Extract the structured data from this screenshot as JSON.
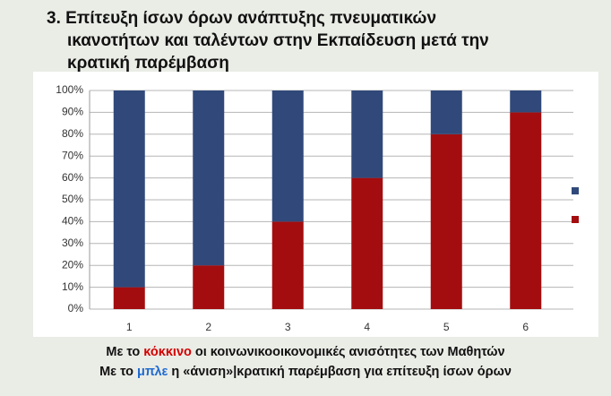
{
  "chart_data": {
    "type": "stacked_bar",
    "title_lines": [
      "3. Επίτευξη ίσων όρων ανάπτυξης πνευματικών",
      "ικανοτήτων και ταλέντων στην Εκπαίδευση μετά την",
      "κρατική παρέμβαση"
    ],
    "categories": [
      "1",
      "2",
      "3",
      "4",
      "5",
      "6"
    ],
    "series": [
      {
        "color": "#a30d0f",
        "values": [
          10,
          20,
          40,
          60,
          80,
          90
        ]
      },
      {
        "color": "#30497a",
        "values": [
          90,
          80,
          60,
          40,
          20,
          10
        ]
      }
    ],
    "ylim": [
      0,
      100
    ],
    "yticks": [
      {
        "value": 0,
        "label": "0%"
      },
      {
        "value": 10,
        "label": "10%"
      },
      {
        "value": 20,
        "label": "20%"
      },
      {
        "value": 30,
        "label": "30%"
      },
      {
        "value": 40,
        "label": "40%"
      },
      {
        "value": 50,
        "label": "50%"
      },
      {
        "value": 60,
        "label": "60%"
      },
      {
        "value": 70,
        "label": "70%"
      },
      {
        "value": 80,
        "label": "80%"
      },
      {
        "value": 90,
        "label": "90%"
      },
      {
        "value": 100,
        "label": "100%"
      }
    ],
    "grid": true,
    "caption": [
      [
        {
          "text": "Με το"
        },
        {
          "text": "κόκκινο",
          "color": "#d30000"
        },
        {
          "text": "οι κοινωνικοοικονομικές ανισότητες των Μαθητών"
        }
      ],
      [
        {
          "text": "Με το"
        },
        {
          "text": "μπλε",
          "color": "#1f6ad0"
        },
        {
          "text": "η «άνιση»|κρατική παρέμβαση για επίτευξη ίσων όρων"
        }
      ]
    ]
  }
}
